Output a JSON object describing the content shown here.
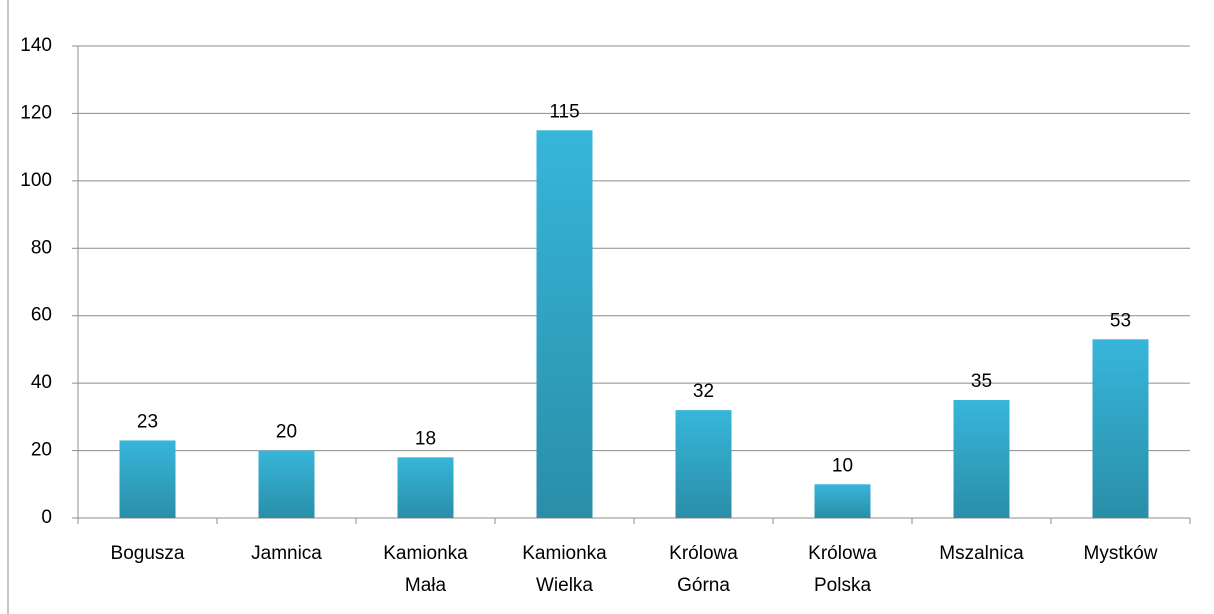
{
  "chart_data": {
    "type": "bar",
    "categories": [
      "Bogusza",
      "Jamnica",
      "Kamionka Mała",
      "Kamionka Wielka",
      "Królowa Górna",
      "Królowa Polska",
      "Mszalnica",
      "Mystków"
    ],
    "values": [
      23,
      20,
      18,
      115,
      32,
      10,
      35,
      53
    ],
    "color": "#31a7c8",
    "ylim": [
      0,
      140
    ],
    "yticks": [
      0,
      20,
      40,
      60,
      80,
      100,
      120,
      140
    ],
    "grid": true
  }
}
